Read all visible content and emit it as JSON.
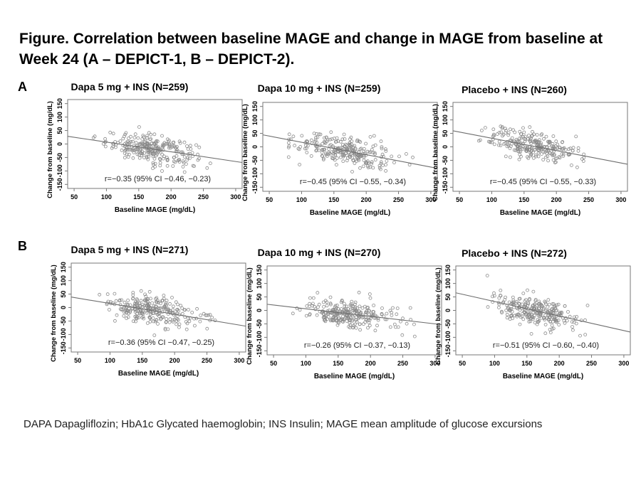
{
  "figure_title": "Figure. Correlation between baseline MAGE and change in MAGE from baseline at Week 24 (A – DEPICT-1, B – DEPICT-2).",
  "footnote": "DAPA Dapagliflozin; HbA1c Glycated haemoglobin; INS Insulin; MAGE mean amplitude of glucose excursions",
  "panel_letters": [
    "A",
    "B"
  ],
  "colors": {
    "points": "#8a8a8a",
    "line": "#6e6e6e",
    "frame": "#777777"
  },
  "chart_data": [
    {
      "type": "scatter",
      "panel": "A",
      "title": "Dapa 5 mg + INS (N=259)",
      "xlabel": "Baseline MAGE (mg/dL)",
      "ylabel": "Change from baseline (mg/dL)",
      "xticks": [
        50,
        100,
        150,
        200,
        250,
        300
      ],
      "yticks": [
        -150,
        -100,
        -50,
        0,
        50,
        100,
        150
      ],
      "xlim": [
        40,
        310
      ],
      "ylim": [
        -165,
        165
      ],
      "annotation": "r=−0.35 (95% CI −0.46, −0.23)",
      "r": -0.35,
      "n_points": 259,
      "x_center": 170,
      "x_spread": 35,
      "x_min": 80,
      "x_max": 290,
      "fit": {
        "x": [
          50,
          300
        ],
        "y": [
          25,
          -65
        ]
      },
      "resid_sd": 25,
      "grid": false
    },
    {
      "type": "scatter",
      "panel": "A",
      "title": "Dapa 10 mg + INS (N=259)",
      "xlabel": "Baseline MAGE (mg/dL)",
      "ylabel": "Change from baseline (mg/dL)",
      "xticks": [
        50,
        100,
        150,
        200,
        250,
        300
      ],
      "yticks": [
        -150,
        -100,
        -50,
        0,
        50,
        100,
        150
      ],
      "xlim": [
        40,
        310
      ],
      "ylim": [
        -165,
        165
      ],
      "annotation": "r=−0.45 (95% CI −0.55, −0.34)",
      "r": -0.45,
      "n_points": 259,
      "x_center": 165,
      "x_spread": 38,
      "x_min": 80,
      "x_max": 300,
      "fit": {
        "x": [
          50,
          300
        ],
        "y": [
          40,
          -75
        ]
      },
      "resid_sd": 28,
      "grid": false
    },
    {
      "type": "scatter",
      "panel": "A",
      "title": "Placebo + INS (N=260)",
      "xlabel": "Baseline MAGE (mg/dL)",
      "ylabel": "Change from baseline (mg/dL)",
      "xticks": [
        50,
        100,
        150,
        200,
        250,
        300
      ],
      "yticks": [
        -150,
        -100,
        -50,
        0,
        50,
        100,
        150
      ],
      "xlim": [
        40,
        310
      ],
      "ylim": [
        -165,
        165
      ],
      "annotation": "r=−0.45 (95% CI −0.55, −0.33)",
      "r": -0.45,
      "n_points": 260,
      "x_center": 165,
      "x_spread": 35,
      "x_min": 80,
      "x_max": 290,
      "fit": {
        "x": [
          50,
          300
        ],
        "y": [
          55,
          -60
        ]
      },
      "resid_sd": 26,
      "grid": false
    },
    {
      "type": "scatter",
      "panel": "B",
      "title": "Dapa 5 mg + INS (N=271)",
      "xlabel": "Baseline MAGE (mg/dL)",
      "ylabel": "Change from baseline (mg/dL)",
      "xticks": [
        50,
        100,
        150,
        200,
        250,
        300
      ],
      "yticks": [
        -150,
        -100,
        -50,
        0,
        50,
        100,
        150
      ],
      "xlim": [
        40,
        310
      ],
      "ylim": [
        -165,
        165
      ],
      "annotation": "r=−0.36 (95% CI −0.47, −0.25)",
      "r": -0.36,
      "n_points": 271,
      "x_center": 165,
      "x_spread": 35,
      "x_min": 70,
      "x_max": 280,
      "fit": {
        "x": [
          50,
          300
        ],
        "y": [
          35,
          -65
        ]
      },
      "resid_sd": 27,
      "grid": false
    },
    {
      "type": "scatter",
      "panel": "B",
      "title": "Dapa 10 mg + INS (N=270)",
      "xlabel": "Baseline MAGE (mg/dL)",
      "ylabel": "Change from baseline (mg/dL)",
      "xticks": [
        50,
        100,
        150,
        200,
        250,
        300
      ],
      "yticks": [
        -150,
        -100,
        -50,
        0,
        50,
        100,
        150
      ],
      "xlim": [
        40,
        310
      ],
      "ylim": [
        -165,
        165
      ],
      "annotation": "r=−0.26 (95% CI −0.37, −0.13)",
      "r": -0.26,
      "n_points": 270,
      "x_center": 165,
      "x_spread": 35,
      "x_min": 80,
      "x_max": 280,
      "fit": {
        "x": [
          50,
          300
        ],
        "y": [
          20,
          -50
        ]
      },
      "resid_sd": 26,
      "grid": false
    },
    {
      "type": "scatter",
      "panel": "B",
      "title": "Placebo + INS (N=272)",
      "xlabel": "Baseline MAGE (mg/dL)",
      "ylabel": "Change from baseline (mg/dL)",
      "xticks": [
        50,
        100,
        150,
        200,
        250,
        300
      ],
      "yticks": [
        -150,
        -100,
        -50,
        0,
        50,
        100,
        150
      ],
      "xlim": [
        40,
        310
      ],
      "ylim": [
        -165,
        165
      ],
      "annotation": "r=−0.51 (95% CI −0.60, −0.40)",
      "r": -0.51,
      "n_points": 272,
      "x_center": 160,
      "x_spread": 32,
      "x_min": 80,
      "x_max": 270,
      "fit": {
        "x": [
          50,
          300
        ],
        "y": [
          60,
          -75
        ]
      },
      "resid_sd": 25,
      "grid": false
    }
  ]
}
